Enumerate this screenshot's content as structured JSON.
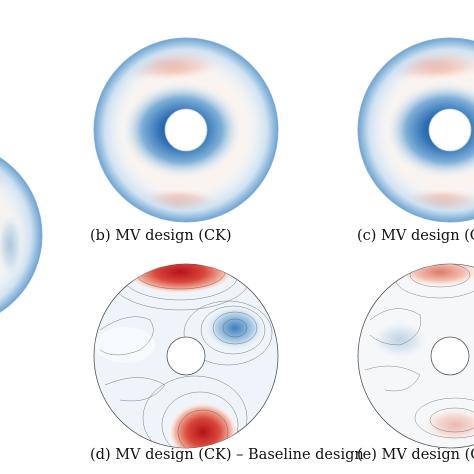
{
  "captions": {
    "b": "(b) MV design (CK)",
    "c": "(c) MV design (G",
    "d": "(d) MV design (CK) – Baseline design",
    "e": "(e) MV design (G"
  }
}
